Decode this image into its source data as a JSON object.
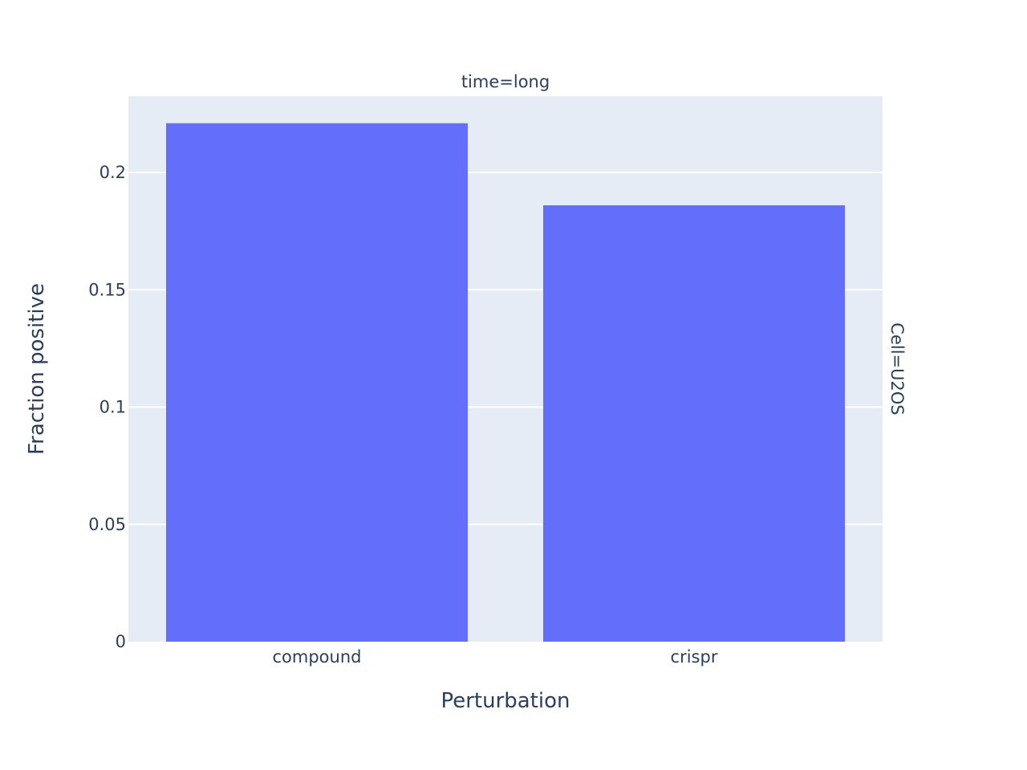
{
  "colors": {
    "plot_background": "#e5ecf6",
    "bar": "#636efa",
    "grid": "#ffffff",
    "text": "#2a3f5f"
  },
  "chart_data": {
    "type": "bar",
    "categories": [
      "compound",
      "crispr"
    ],
    "values": [
      0.221,
      0.186
    ],
    "xlabel": "Perturbation",
    "ylabel": "Fraction positive",
    "facet_col_label": "time=long",
    "facet_row_label": "Cell=U2OS",
    "ylim": [
      0,
      0.2325
    ],
    "yticks": [
      0,
      0.05,
      0.1,
      0.15,
      0.2
    ],
    "ytick_labels": [
      "0",
      "0.05",
      "0.1",
      "0.15",
      "0.2"
    ],
    "grid": true,
    "legend": "none"
  }
}
